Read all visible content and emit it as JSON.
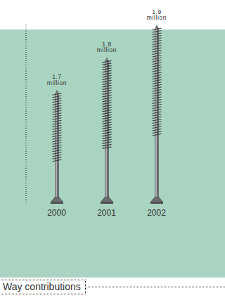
{
  "chart_data": {
    "type": "bar",
    "title": "Way contributions",
    "categories": [
      "2000",
      "2001",
      "2002"
    ],
    "values": [
      1.7,
      1.8,
      1.9
    ],
    "value_labels": [
      "1.7 million",
      "1.8 million",
      "1.9 million"
    ],
    "ylim": [
      1.35,
      1.9
    ],
    "tick_labels": "x",
    "data_labels": true,
    "color": "#6b6e70"
  }
}
